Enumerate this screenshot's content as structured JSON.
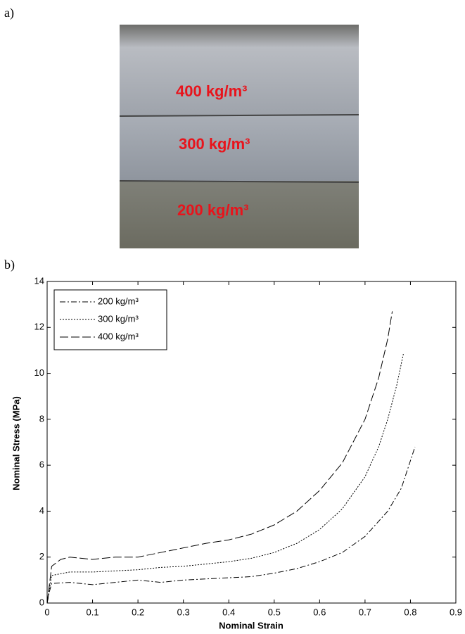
{
  "figure": {
    "panel_a": "a)",
    "panel_b": "b)",
    "photo_labels": [
      "400 kg/m³",
      "300 kg/m³",
      "200 kg/m³"
    ]
  },
  "chart_data": {
    "type": "line",
    "xlabel": "Nominal Strain",
    "ylabel": "Nominal Stress (MPa)",
    "xlim": [
      0,
      0.9
    ],
    "ylim": [
      0,
      14
    ],
    "xticks": [
      0,
      0.1,
      0.2,
      0.3,
      0.4,
      0.5,
      0.6,
      0.7,
      0.8,
      0.9
    ],
    "yticks": [
      0,
      2,
      4,
      6,
      8,
      10,
      12,
      14
    ],
    "grid": false,
    "legend": "upper-left",
    "series": [
      {
        "name": "200 kg/m³",
        "color": "#000000",
        "dash": "8 3 2 3",
        "x": [
          0,
          0.005,
          0.01,
          0.05,
          0.1,
          0.15,
          0.2,
          0.25,
          0.3,
          0.35,
          0.4,
          0.45,
          0.5,
          0.55,
          0.6,
          0.65,
          0.7,
          0.75,
          0.78,
          0.8,
          0.81
        ],
        "values": [
          0,
          0.5,
          0.85,
          0.9,
          0.8,
          0.9,
          1.0,
          0.9,
          1.0,
          1.05,
          1.1,
          1.15,
          1.3,
          1.5,
          1.8,
          2.2,
          2.9,
          4.0,
          5.0,
          6.2,
          6.8
        ]
      },
      {
        "name": "300 kg/m³",
        "color": "#000000",
        "dash": "2 2",
        "x": [
          0,
          0.01,
          0.05,
          0.1,
          0.15,
          0.2,
          0.25,
          0.3,
          0.35,
          0.4,
          0.45,
          0.5,
          0.55,
          0.6,
          0.65,
          0.7,
          0.73,
          0.75,
          0.77,
          0.785
        ],
        "values": [
          0,
          1.2,
          1.35,
          1.35,
          1.4,
          1.45,
          1.55,
          1.6,
          1.7,
          1.8,
          1.95,
          2.2,
          2.6,
          3.2,
          4.1,
          5.5,
          6.8,
          8.0,
          9.5,
          10.9
        ]
      },
      {
        "name": "400 kg/m³",
        "color": "#000000",
        "dash": "12 4",
        "x": [
          0,
          0.01,
          0.03,
          0.05,
          0.1,
          0.15,
          0.2,
          0.25,
          0.3,
          0.35,
          0.4,
          0.45,
          0.5,
          0.55,
          0.6,
          0.65,
          0.7,
          0.73,
          0.75,
          0.76
        ],
        "values": [
          0,
          1.6,
          1.9,
          2.0,
          1.9,
          2.0,
          2.0,
          2.2,
          2.4,
          2.6,
          2.75,
          3.0,
          3.4,
          4.0,
          4.9,
          6.1,
          8.0,
          9.8,
          11.5,
          12.7
        ]
      }
    ]
  }
}
